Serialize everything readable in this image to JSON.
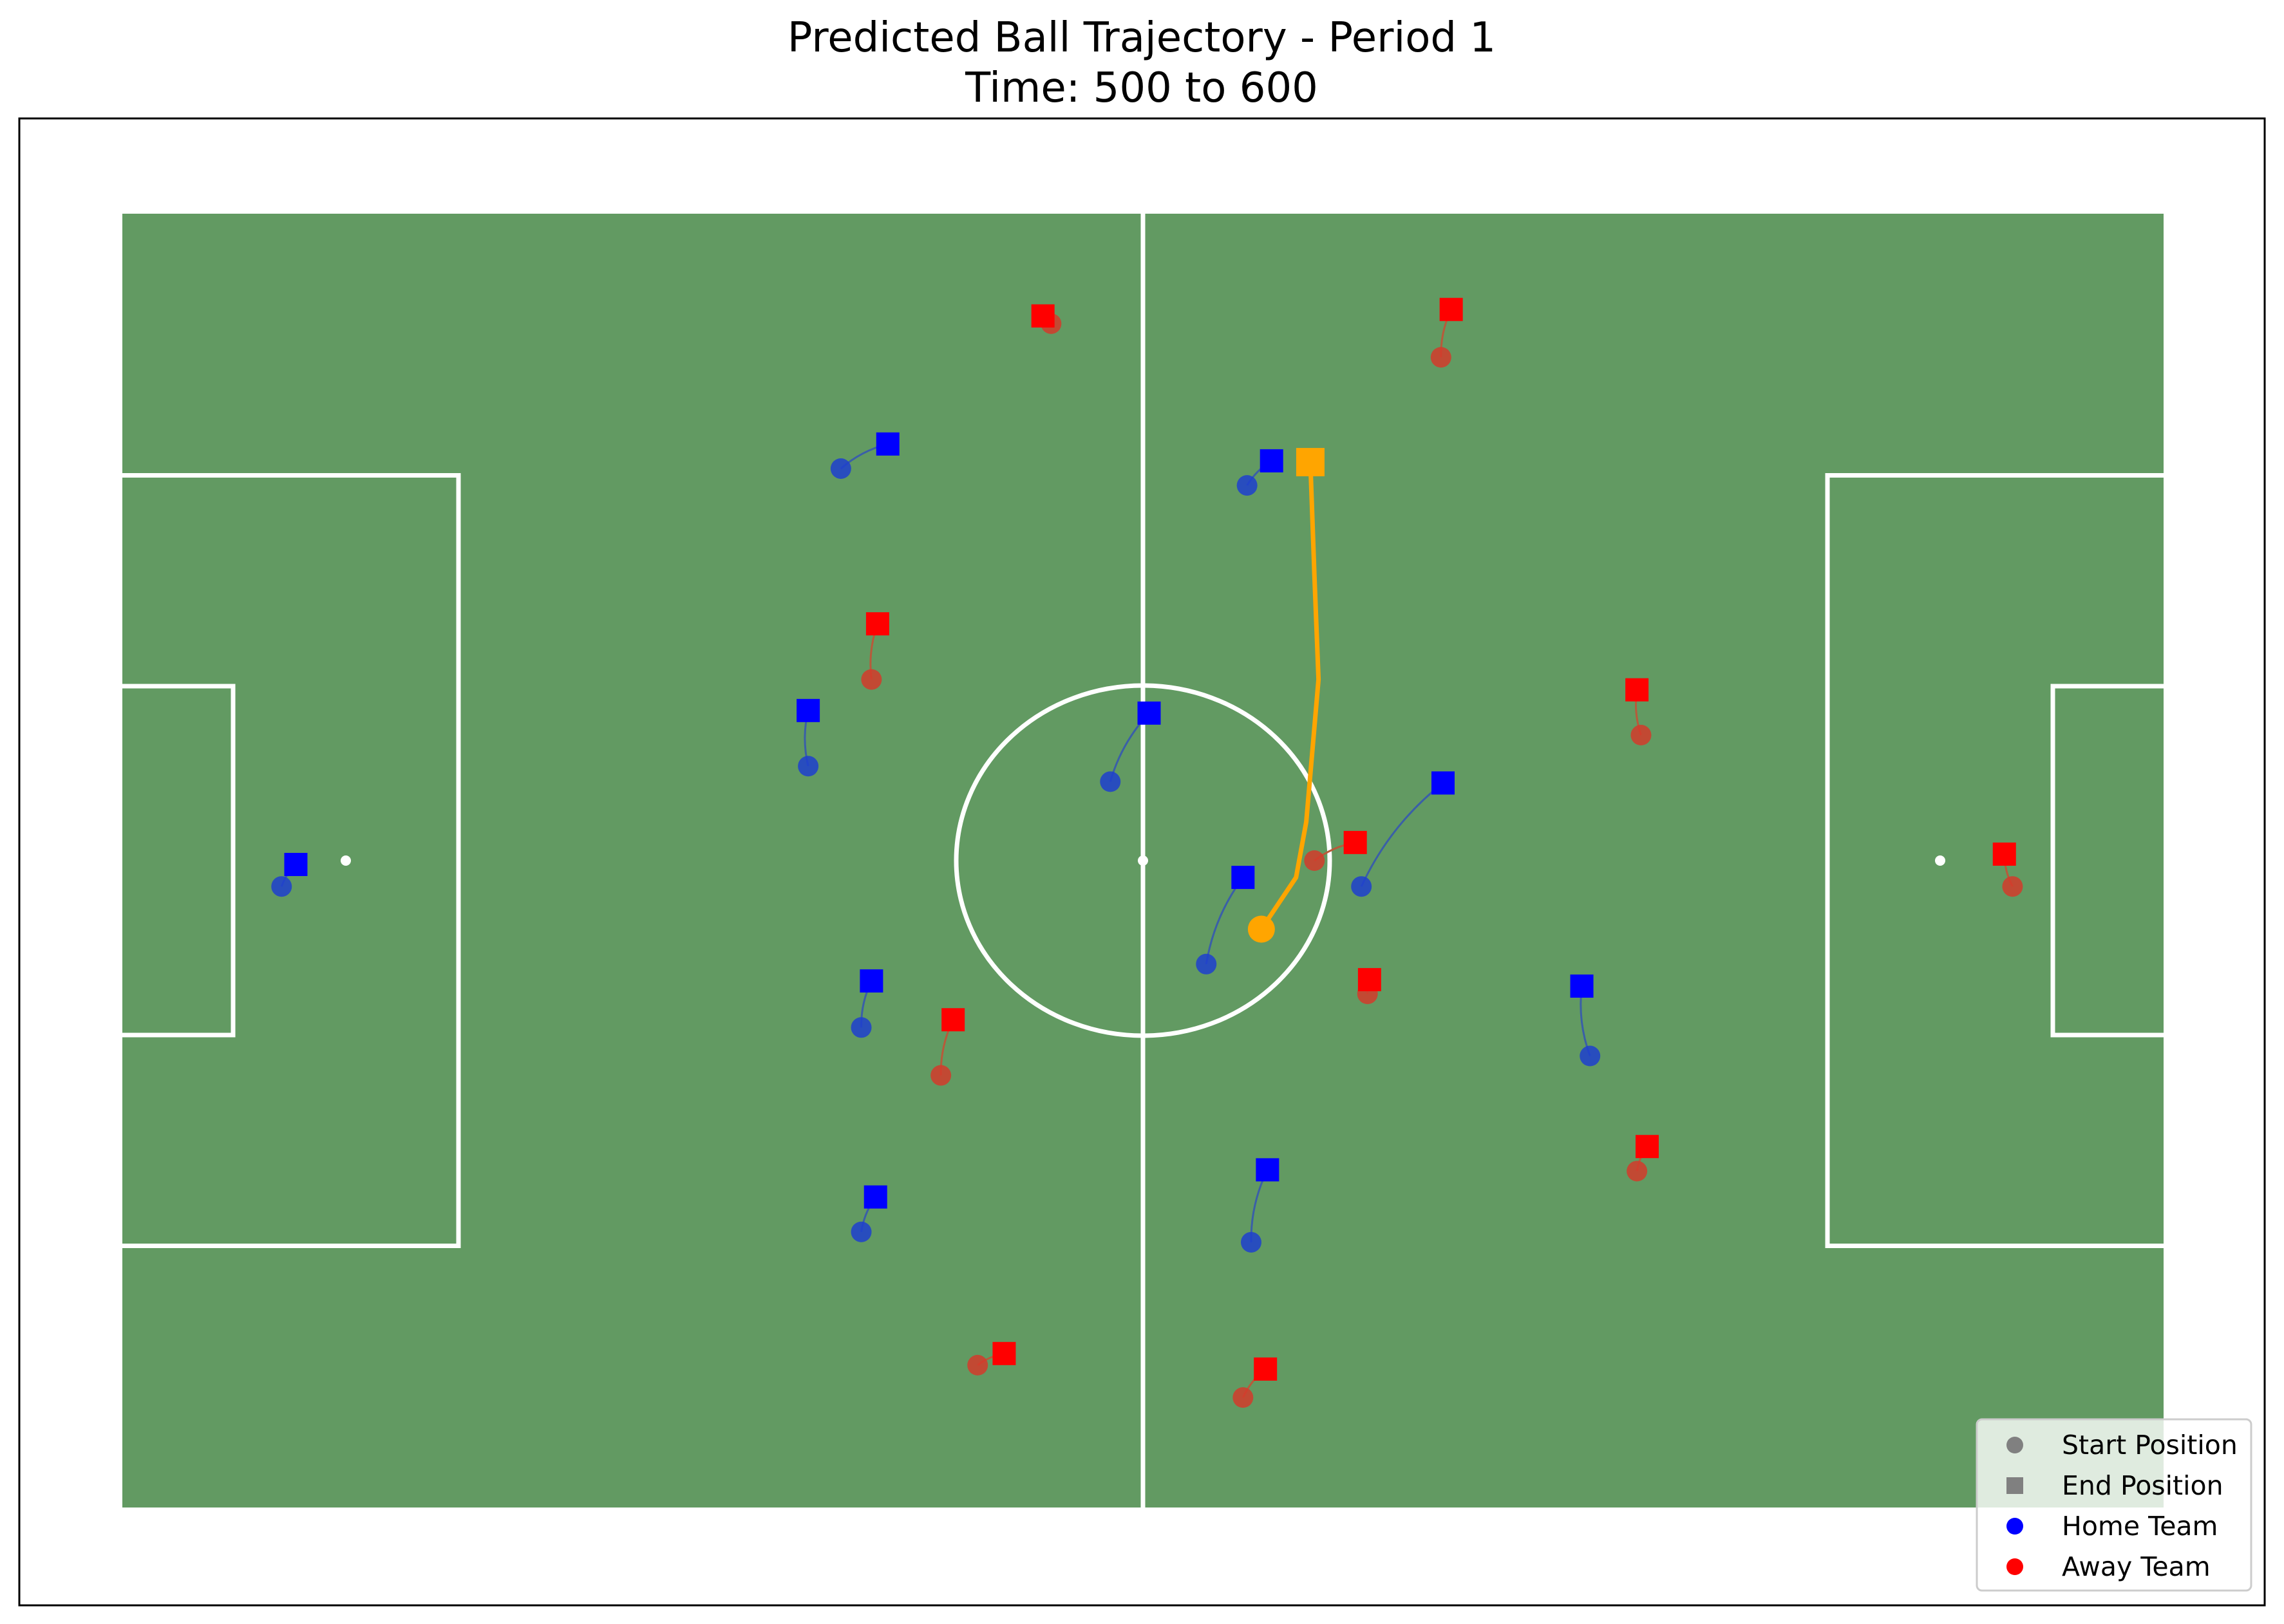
{
  "chart_data": {
    "type": "scatter",
    "title": "Predicted Ball Trajectory - Period 1",
    "subtitle": "Time: 500 to 600",
    "xlim": [
      0,
      1
    ],
    "ylim": [
      0,
      1
    ],
    "grid": false,
    "legend_placement": "lower-right",
    "legend": [
      {
        "label": "Start Position",
        "marker": "circle",
        "color": "#808080"
      },
      {
        "label": "End Position",
        "marker": "square",
        "color": "#808080"
      },
      {
        "label": "Home Team",
        "marker": "circle",
        "color": "#0000ff"
      },
      {
        "label": "Away Team",
        "marker": "circle",
        "color": "#ff0000"
      }
    ],
    "colors": {
      "pitch": "#629a62",
      "lines": "#ffffff",
      "home": "#0000ff",
      "home_start": "#1f3fcf",
      "home_trail": "#3a5fa8",
      "away": "#ff0000",
      "away_start": "#d33b2c",
      "away_trail": "#b85a3a",
      "ball": "#ffa500"
    },
    "ball": {
      "start": [
        0.558,
        0.447
      ],
      "end": [
        0.582,
        0.808
      ],
      "path": [
        [
          0.558,
          0.447
        ],
        [
          0.575,
          0.487
        ],
        [
          0.58,
          0.53
        ],
        [
          0.586,
          0.64
        ],
        [
          0.584,
          0.72
        ],
        [
          0.582,
          0.808
        ]
      ]
    },
    "players": [
      {
        "team": "home",
        "start": [
          0.078,
          0.48
        ],
        "end": [
          0.085,
          0.497
        ]
      },
      {
        "team": "home",
        "start": [
          0.352,
          0.803
        ],
        "end": [
          0.375,
          0.822
        ]
      },
      {
        "team": "home",
        "start": [
          0.336,
          0.573
        ],
        "end": [
          0.336,
          0.616
        ]
      },
      {
        "team": "home",
        "start": [
          0.362,
          0.371
        ],
        "end": [
          0.367,
          0.407
        ]
      },
      {
        "team": "home",
        "start": [
          0.362,
          0.213
        ],
        "end": [
          0.369,
          0.24
        ]
      },
      {
        "team": "home",
        "start": [
          0.484,
          0.561
        ],
        "end": [
          0.503,
          0.614
        ]
      },
      {
        "team": "home",
        "start": [
          0.551,
          0.79
        ],
        "end": [
          0.563,
          0.809
        ]
      },
      {
        "team": "home",
        "start": [
          0.531,
          0.42
        ],
        "end": [
          0.549,
          0.487
        ]
      },
      {
        "team": "home",
        "start": [
          0.607,
          0.48
        ],
        "end": [
          0.647,
          0.56
        ]
      },
      {
        "team": "home",
        "start": [
          0.553,
          0.205
        ],
        "end": [
          0.561,
          0.261
        ]
      },
      {
        "team": "home",
        "start": [
          0.719,
          0.349
        ],
        "end": [
          0.715,
          0.403
        ]
      },
      {
        "team": "away",
        "start": [
          0.455,
          0.915
        ],
        "end": [
          0.451,
          0.921
        ]
      },
      {
        "team": "away",
        "start": [
          0.367,
          0.64
        ],
        "end": [
          0.37,
          0.683
        ]
      },
      {
        "team": "away",
        "start": [
          0.401,
          0.334
        ],
        "end": [
          0.407,
          0.377
        ]
      },
      {
        "team": "away",
        "start": [
          0.419,
          0.11
        ],
        "end": [
          0.432,
          0.119
        ]
      },
      {
        "team": "away",
        "start": [
          0.549,
          0.085
        ],
        "end": [
          0.56,
          0.107
        ]
      },
      {
        "team": "away",
        "start": [
          0.584,
          0.5
        ],
        "end": [
          0.604,
          0.514
        ]
      },
      {
        "team": "away",
        "start": [
          0.61,
          0.397
        ],
        "end": [
          0.611,
          0.408
        ]
      },
      {
        "team": "away",
        "start": [
          0.646,
          0.889
        ],
        "end": [
          0.651,
          0.926
        ]
      },
      {
        "team": "away",
        "start": [
          0.744,
          0.597
        ],
        "end": [
          0.742,
          0.632
        ]
      },
      {
        "team": "away",
        "start": [
          0.742,
          0.26
        ],
        "end": [
          0.747,
          0.279
        ]
      },
      {
        "team": "away",
        "start": [
          0.926,
          0.48
        ],
        "end": [
          0.922,
          0.505
        ]
      }
    ]
  }
}
